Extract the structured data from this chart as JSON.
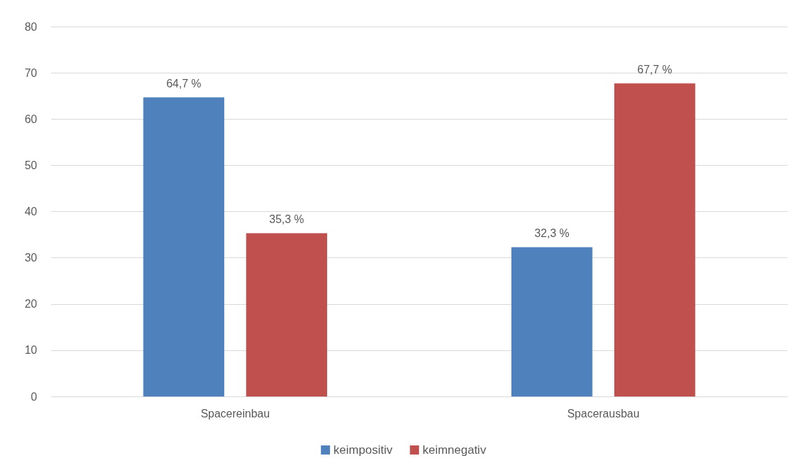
{
  "chart_data": {
    "type": "bar",
    "categories": [
      "Spacereinbau",
      "Spacerausbau"
    ],
    "series": [
      {
        "name": "keimpositiv",
        "color": "#4f81bd",
        "values": [
          64.7,
          32.3
        ],
        "value_labels": [
          "64,7 %",
          "32,3 %"
        ]
      },
      {
        "name": "keimnegativ",
        "color": "#c0504d",
        "values": [
          35.3,
          67.7
        ],
        "value_labels": [
          "35,3 %",
          "67,7 %"
        ]
      }
    ],
    "ylim": [
      0,
      80
    ],
    "yticks": [
      0,
      10,
      20,
      30,
      40,
      50,
      60,
      70,
      80
    ],
    "grid": "y",
    "legend": "bottom"
  }
}
